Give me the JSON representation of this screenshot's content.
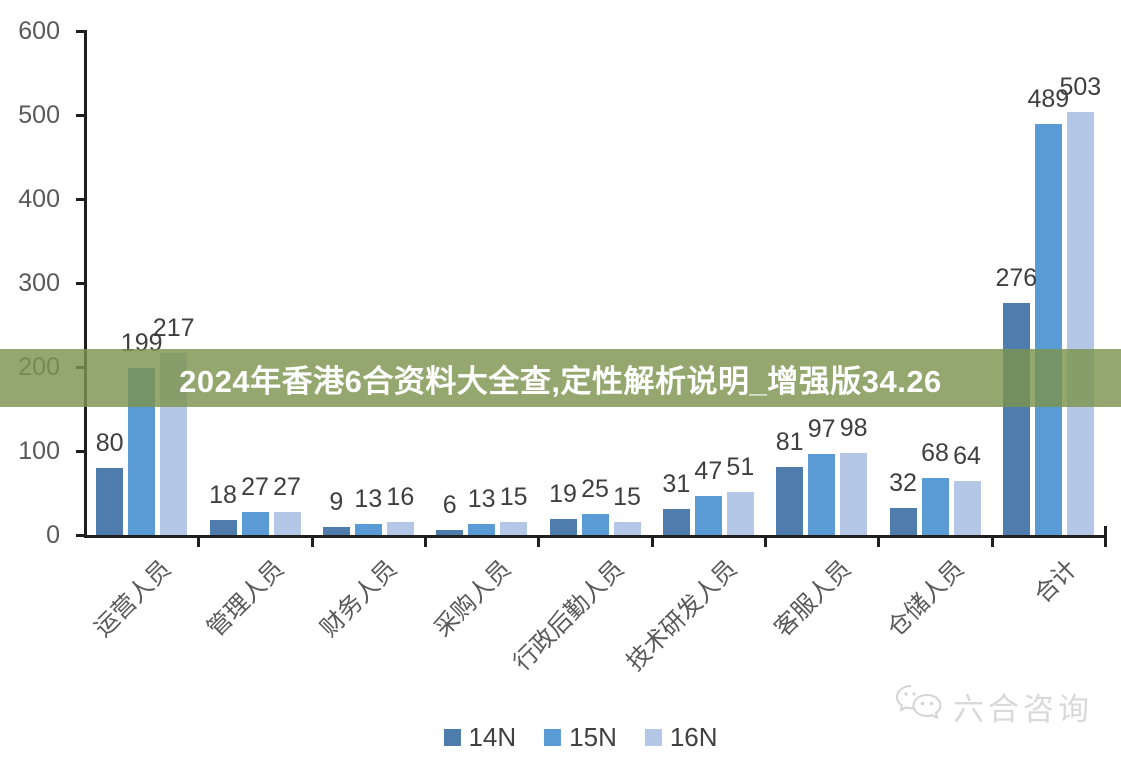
{
  "banner": {
    "text": "2024年香港6合资料大全查,定性解析说明_增强版34.26",
    "bg_color": "#7C944E",
    "text_color": "#FFFFFF"
  },
  "chart_data": {
    "type": "bar",
    "title": "",
    "categories": [
      "运营人员",
      "管理人员",
      "财务人员",
      "采购人员",
      "行政后勤人员",
      "技术研发人员",
      "客服人员",
      "仓储人员",
      "合计"
    ],
    "series": [
      {
        "name": "14N",
        "color": "#4E7CAC",
        "values": [
          80,
          18,
          9,
          6,
          19,
          31,
          81,
          32,
          276
        ]
      },
      {
        "name": "15N",
        "color": "#5B9BD5",
        "values": [
          199,
          27,
          13,
          13,
          25,
          47,
          97,
          68,
          489
        ]
      },
      {
        "name": "16N",
        "color": "#B4C7E7",
        "values": [
          217,
          27,
          16,
          15,
          15,
          51,
          98,
          64,
          503
        ]
      }
    ],
    "ylim": [
      0,
      600
    ],
    "yticks": [
      0,
      100,
      200,
      300,
      400,
      500,
      600
    ],
    "ylabel": "",
    "xlabel": "",
    "grid": false,
    "data_labels": true,
    "legend_position": "bottom",
    "axis_color": "#1F1F1F",
    "data_label_color": "#3F3F3F",
    "tick_label_color": "#595959"
  },
  "watermark": {
    "text": "六合咨询",
    "icon": "wechat-chat-bubbles-icon"
  }
}
